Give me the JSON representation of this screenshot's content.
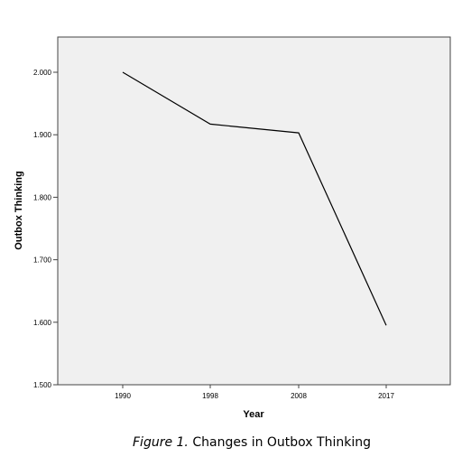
{
  "caption": {
    "label": "Figure 1.",
    "text": "Changes in Outbox Thinking"
  },
  "chart_data": {
    "type": "line",
    "title": "",
    "xlabel": "Year",
    "ylabel": "Outbox Thinking",
    "categories": [
      "1990",
      "1998",
      "2008",
      "2017"
    ],
    "series": [
      {
        "values": [
          2.0,
          1.917,
          1.903,
          1.595
        ]
      }
    ],
    "ylim": [
      1.5,
      2.05
    ],
    "yticks": [
      1.5,
      1.6,
      1.7,
      1.8,
      1.9,
      2.0
    ],
    "ytick_labels": [
      "1.500",
      "1.600",
      "1.700",
      "1.800",
      "1.900",
      "2.000"
    ],
    "grid": false,
    "legend": "none",
    "colors": {
      "plot_background": "#f0f0f0",
      "line": "#000000",
      "frame": "#444444"
    }
  }
}
